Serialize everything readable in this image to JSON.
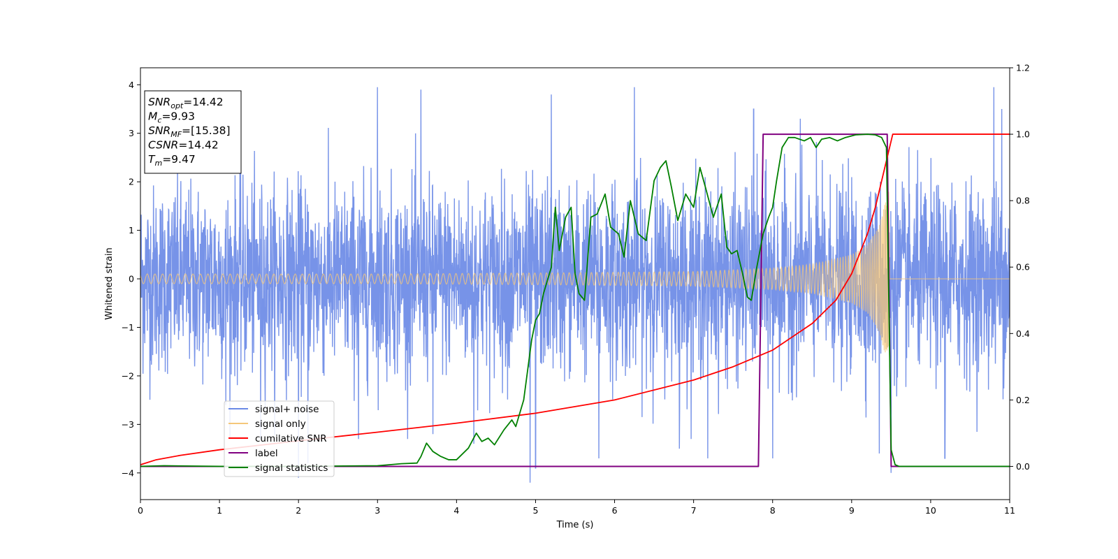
{
  "chart_data": {
    "type": "line",
    "xlabel": "Time (s)",
    "ylabel": "Whitened strain",
    "xlim": [
      0,
      11
    ],
    "ylim_left": [
      -4.55,
      4.35
    ],
    "ylim_right": [
      -0.1,
      1.2
    ],
    "x_ticks": [
      "0",
      "1",
      "2",
      "3",
      "4",
      "5",
      "6",
      "7",
      "8",
      "9",
      "10",
      "11"
    ],
    "y_left_ticks": [
      "4",
      "3",
      "2",
      "1",
      "0",
      "−1",
      "−2",
      "−3",
      "−4"
    ],
    "y_left_tick_values": [
      4,
      3,
      2,
      1,
      0,
      -1,
      -2,
      -3,
      -4
    ],
    "y_right_ticks": [
      "1.2",
      "1.0",
      "0.8",
      "0.6",
      "0.4",
      "0.2",
      "0.0"
    ],
    "y_right_tick_values": [
      1.2,
      1.0,
      0.8,
      0.6,
      0.4,
      0.2,
      0.0
    ],
    "info_box": {
      "lines": [
        {
          "main": "SNR",
          "sub": "opt",
          "rest": "=14.42"
        },
        {
          "main": "M",
          "sub": "c",
          "rest": "=9.93"
        },
        {
          "main": "SNR",
          "sub": "MF",
          "rest": "=[15.38]"
        },
        {
          "main": "CSNR",
          "sub": "",
          "rest": "=14.42"
        },
        {
          "main": "T",
          "sub": "m",
          "rest": "=9.47"
        }
      ]
    },
    "legend": {
      "placement": "lower-left",
      "entries": [
        {
          "label": "signal+ noise",
          "color": "#6b8ae6"
        },
        {
          "label": "signal only",
          "color": "#f5c77a"
        },
        {
          "label": "cumilative SNR",
          "color": "#ff0000"
        },
        {
          "label": "label",
          "color": "#800080"
        },
        {
          "label": "signal statistics",
          "color": "#008000"
        }
      ]
    },
    "series": [
      {
        "name": "signal+ noise",
        "axis": "left",
        "color": "#6b8ae6",
        "style": "dense whitened noise, amplitude about 1 sigma, peaks to about ±4",
        "peaks": [
          [
            1.08,
            -2.6
          ],
          [
            1.52,
            -3.3
          ],
          [
            2.0,
            -4.1
          ],
          [
            2.12,
            -3.8
          ],
          [
            2.76,
            -3.3
          ],
          [
            3.0,
            3.95
          ],
          [
            3.55,
            3.9
          ],
          [
            3.7,
            -3.2
          ],
          [
            4.22,
            -3.4
          ],
          [
            4.93,
            -4.2
          ],
          [
            5.0,
            -3.9
          ],
          [
            5.2,
            3.8
          ],
          [
            5.8,
            -3.7
          ],
          [
            6.25,
            3.95
          ],
          [
            6.82,
            -3.5
          ],
          [
            7.18,
            -3.7
          ],
          [
            7.76,
            3.5
          ],
          [
            8.0,
            -3.7
          ],
          [
            8.35,
            3.3
          ],
          [
            9.35,
            -3.6
          ],
          [
            9.5,
            -4.0
          ],
          [
            10.18,
            -3.7
          ],
          [
            10.8,
            3.95
          ],
          [
            10.9,
            3.5
          ]
        ]
      },
      {
        "name": "signal only",
        "axis": "left",
        "color": "#f5c77a",
        "style": "chirp, envelope grows toward merger",
        "t_merger": 9.47,
        "envelope": [
          [
            0,
            0.1
          ],
          [
            3,
            0.1
          ],
          [
            5,
            0.12
          ],
          [
            7,
            0.15
          ],
          [
            8,
            0.22
          ],
          [
            8.5,
            0.3
          ],
          [
            9,
            0.5
          ],
          [
            9.2,
            0.7
          ],
          [
            9.35,
            1.1
          ],
          [
            9.43,
            1.6
          ],
          [
            9.47,
            1.8
          ],
          [
            9.48,
            0
          ],
          [
            11,
            0
          ]
        ]
      },
      {
        "name": "cumilative SNR",
        "axis": "right",
        "color": "#ff0000",
        "points": [
          [
            0,
            0.005
          ],
          [
            0.2,
            0.02
          ],
          [
            0.5,
            0.033
          ],
          [
            1,
            0.05
          ],
          [
            2,
            0.077
          ],
          [
            3,
            0.103
          ],
          [
            4,
            0.13
          ],
          [
            5,
            0.16
          ],
          [
            6,
            0.2
          ],
          [
            7,
            0.26
          ],
          [
            7.5,
            0.3
          ],
          [
            8,
            0.35
          ],
          [
            8.5,
            0.43
          ],
          [
            8.8,
            0.5
          ],
          [
            9,
            0.58
          ],
          [
            9.2,
            0.7
          ],
          [
            9.3,
            0.78
          ],
          [
            9.4,
            0.88
          ],
          [
            9.47,
            0.95
          ],
          [
            9.52,
            1.0
          ],
          [
            11,
            1.0
          ]
        ]
      },
      {
        "name": "label",
        "axis": "right",
        "color": "#800080",
        "points": [
          [
            0,
            0
          ],
          [
            7.82,
            0
          ],
          [
            7.88,
            1.0
          ],
          [
            9.45,
            1.0
          ],
          [
            9.5,
            0
          ],
          [
            11,
            0
          ]
        ]
      },
      {
        "name": "signal statistics",
        "axis": "right",
        "color": "#008000",
        "points": [
          [
            0,
            0
          ],
          [
            0.3,
            0.002
          ],
          [
            1,
            0
          ],
          [
            2,
            0
          ],
          [
            3,
            0.002
          ],
          [
            3.2,
            0.006
          ],
          [
            3.3,
            0.008
          ],
          [
            3.5,
            0.01
          ],
          [
            3.55,
            0.03
          ],
          [
            3.62,
            0.07
          ],
          [
            3.7,
            0.045
          ],
          [
            3.8,
            0.03
          ],
          [
            3.9,
            0.02
          ],
          [
            4.0,
            0.02
          ],
          [
            4.15,
            0.055
          ],
          [
            4.25,
            0.1
          ],
          [
            4.32,
            0.075
          ],
          [
            4.4,
            0.085
          ],
          [
            4.48,
            0.065
          ],
          [
            4.6,
            0.11
          ],
          [
            4.7,
            0.14
          ],
          [
            4.75,
            0.12
          ],
          [
            4.85,
            0.2
          ],
          [
            4.95,
            0.38
          ],
          [
            5.0,
            0.44
          ],
          [
            5.05,
            0.46
          ],
          [
            5.1,
            0.52
          ],
          [
            5.2,
            0.6
          ],
          [
            5.25,
            0.78
          ],
          [
            5.3,
            0.65
          ],
          [
            5.38,
            0.75
          ],
          [
            5.45,
            0.78
          ],
          [
            5.5,
            0.58
          ],
          [
            5.55,
            0.52
          ],
          [
            5.62,
            0.5
          ],
          [
            5.7,
            0.75
          ],
          [
            5.78,
            0.76
          ],
          [
            5.88,
            0.82
          ],
          [
            5.95,
            0.72
          ],
          [
            6.05,
            0.7
          ],
          [
            6.12,
            0.63
          ],
          [
            6.2,
            0.8
          ],
          [
            6.3,
            0.7
          ],
          [
            6.4,
            0.68
          ],
          [
            6.5,
            0.86
          ],
          [
            6.58,
            0.9
          ],
          [
            6.65,
            0.92
          ],
          [
            6.72,
            0.84
          ],
          [
            6.8,
            0.74
          ],
          [
            6.9,
            0.82
          ],
          [
            7.0,
            0.78
          ],
          [
            7.08,
            0.9
          ],
          [
            7.15,
            0.84
          ],
          [
            7.25,
            0.75
          ],
          [
            7.35,
            0.82
          ],
          [
            7.42,
            0.66
          ],
          [
            7.48,
            0.64
          ],
          [
            7.55,
            0.65
          ],
          [
            7.62,
            0.58
          ],
          [
            7.68,
            0.51
          ],
          [
            7.73,
            0.5
          ],
          [
            7.8,
            0.6
          ],
          [
            7.88,
            0.7
          ],
          [
            7.95,
            0.75
          ],
          [
            8.0,
            0.78
          ],
          [
            8.05,
            0.86
          ],
          [
            8.12,
            0.96
          ],
          [
            8.2,
            0.99
          ],
          [
            8.28,
            0.99
          ],
          [
            8.4,
            0.98
          ],
          [
            8.48,
            0.99
          ],
          [
            8.55,
            0.96
          ],
          [
            8.62,
            0.985
          ],
          [
            8.72,
            0.99
          ],
          [
            8.82,
            0.98
          ],
          [
            8.92,
            0.99
          ],
          [
            9.05,
            0.998
          ],
          [
            9.2,
            1.0
          ],
          [
            9.3,
            0.998
          ],
          [
            9.38,
            0.99
          ],
          [
            9.44,
            0.96
          ],
          [
            9.5,
            0.05
          ],
          [
            9.55,
            0.005
          ],
          [
            9.6,
            0
          ],
          [
            11,
            0
          ]
        ]
      }
    ]
  }
}
